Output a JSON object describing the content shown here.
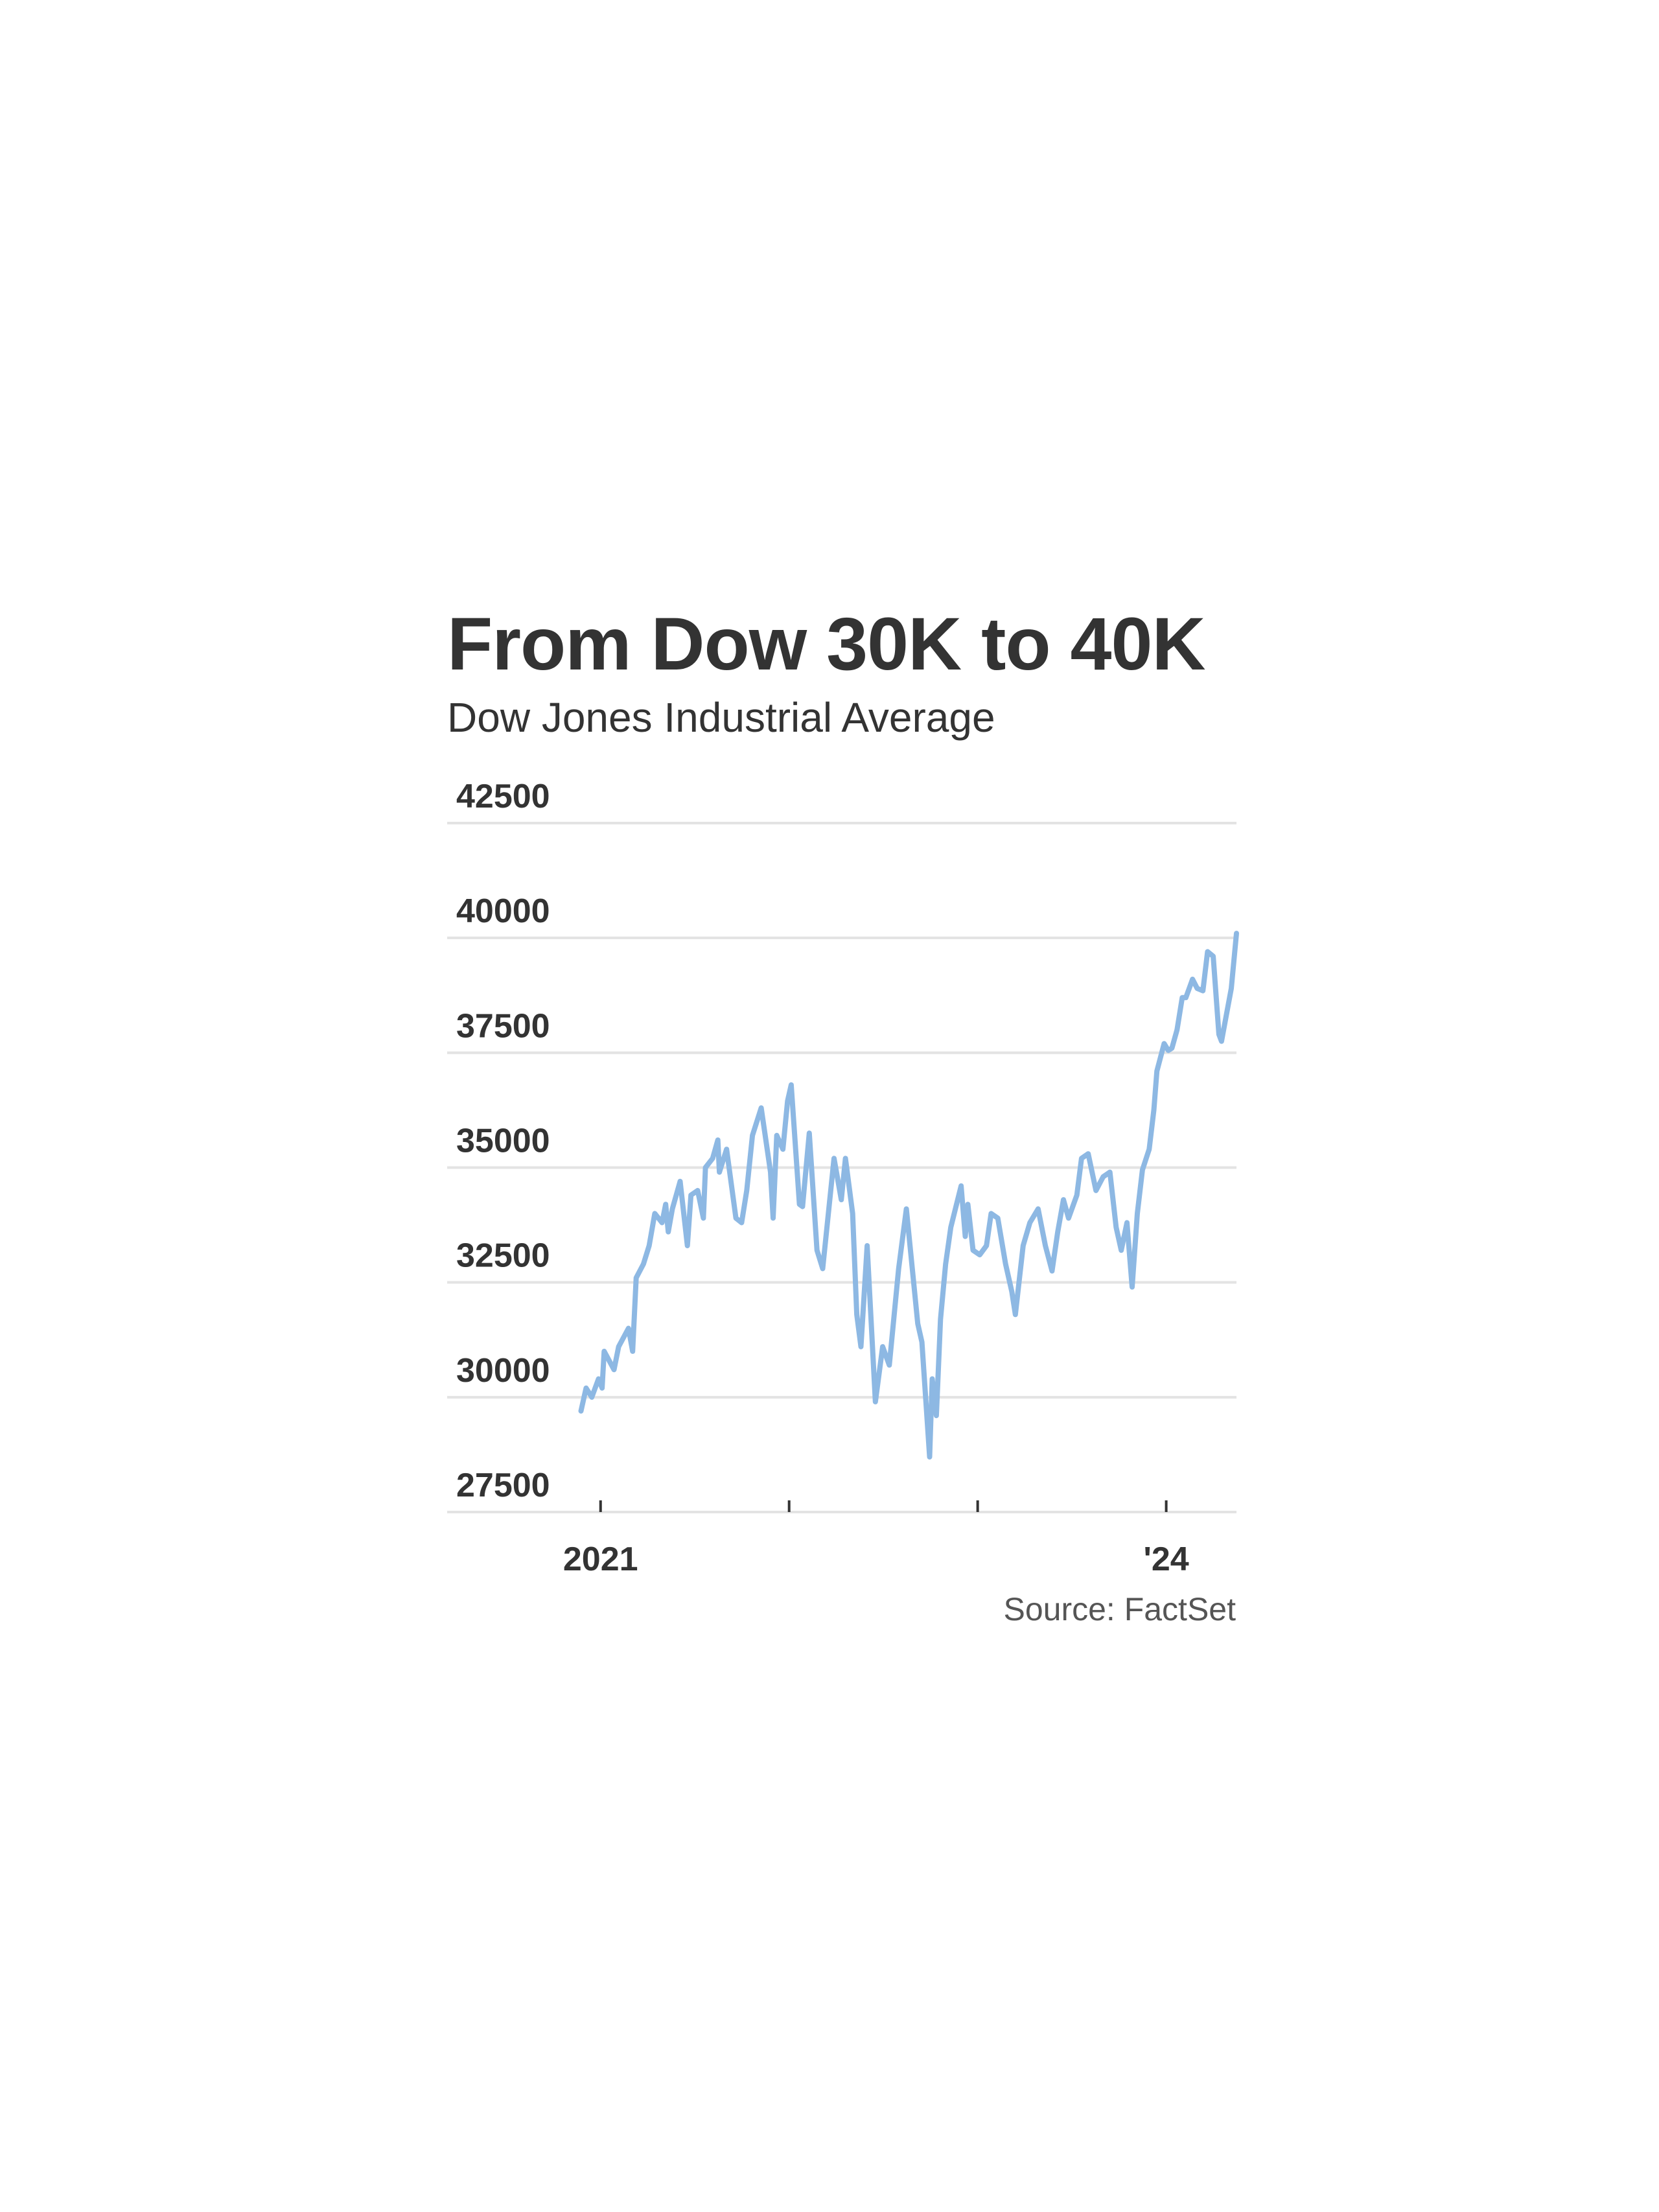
{
  "chart_data": {
    "type": "line",
    "title": "From Dow 30K to 40K",
    "subtitle": "Dow Jones Industrial Average",
    "source": "Source: FactSet",
    "xlabel": "",
    "ylabel": "",
    "ylim": [
      27500,
      42500
    ],
    "xlim": [
      "2020-03-10",
      "2024-05-16"
    ],
    "y_ticks": [
      27500,
      30000,
      32500,
      35000,
      37500,
      40000,
      42500
    ],
    "y_tick_labels": [
      "27500",
      "30000",
      "32500",
      "35000",
      "37500",
      "40000",
      "42500"
    ],
    "x_ticks": [
      "2021-01-01",
      "2022-01-01",
      "2023-01-01",
      "2024-01-01"
    ],
    "x_tick_labels": [
      "2021",
      "",
      "",
      "'24"
    ],
    "grid": "horizontal",
    "legend": "none",
    "line_color": "#8db8e3",
    "grid_color": "#e3e3e3",
    "series": [
      {
        "x": [
          "2020-11-24",
          "2020-12-04",
          "2020-12-15",
          "2020-12-28",
          "2021-01-04",
          "2021-01-08",
          "2021-01-27",
          "2021-02-05",
          "2021-02-24",
          "2021-03-04",
          "2021-03-11",
          "2021-03-25",
          "2021-04-05",
          "2021-04-16",
          "2021-04-30",
          "2021-05-07",
          "2021-05-12",
          "2021-05-20",
          "2021-06-04",
          "2021-06-18",
          "2021-06-25",
          "2021-07-08",
          "2021-07-19",
          "2021-07-23",
          "2021-08-06",
          "2021-08-16",
          "2021-08-19",
          "2021-09-02",
          "2021-09-20",
          "2021-10-01",
          "2021-10-11",
          "2021-10-22",
          "2021-11-08",
          "2021-11-26",
          "2021-12-01",
          "2021-12-08",
          "2021-12-20",
          "2021-12-29",
          "2022-01-05",
          "2022-01-21",
          "2022-01-27",
          "2022-02-09",
          "2022-02-24",
          "2022-03-07",
          "2022-03-29",
          "2022-04-12",
          "2022-04-20",
          "2022-05-04",
          "2022-05-12",
          "2022-05-20",
          "2022-06-01",
          "2022-06-10",
          "2022-06-17",
          "2022-07-01",
          "2022-07-14",
          "2022-08-01",
          "2022-08-16",
          "2022-09-07",
          "2022-09-15",
          "2022-09-30",
          "2022-10-05",
          "2022-10-13",
          "2022-10-21",
          "2022-10-31",
          "2022-11-10",
          "2022-11-30",
          "2022-12-08",
          "2022-12-13",
          "2022-12-23",
          "2023-01-05",
          "2023-01-18",
          "2023-01-27",
          "2023-02-09",
          "2023-02-24",
          "2023-03-08",
          "2023-03-15",
          "2023-03-30",
          "2023-04-12",
          "2023-04-28",
          "2023-05-12",
          "2023-05-25",
          "2023-06-05",
          "2023-06-16",
          "2023-06-26",
          "2023-07-12",
          "2023-07-21",
          "2023-08-03",
          "2023-08-18",
          "2023-09-01",
          "2023-09-14",
          "2023-09-26",
          "2023-10-06",
          "2023-10-17",
          "2023-10-27",
          "2023-11-06",
          "2023-11-16",
          "2023-11-29",
          "2023-12-08",
          "2023-12-14",
          "2023-12-28",
          "2024-01-05",
          "2024-01-12",
          "2024-01-22",
          "2024-02-01",
          "2024-02-08",
          "2024-02-21",
          "2024-03-01",
          "2024-03-12",
          "2024-03-21",
          "2024-04-01",
          "2024-04-12",
          "2024-04-17",
          "2024-04-26",
          "2024-05-06",
          "2024-05-16"
        ],
        "values": [
          29700,
          30200,
          30000,
          30400,
          30200,
          31000,
          30600,
          31100,
          31500,
          31000,
          32600,
          32900,
          33300,
          34000,
          33800,
          34200,
          33600,
          34100,
          34700,
          33300,
          34400,
          34500,
          33900,
          35000,
          35200,
          35600,
          34900,
          35400,
          33900,
          33800,
          34500,
          35700,
          36300,
          34900,
          33900,
          35700,
          35400,
          36450,
          36800,
          34200,
          34150,
          35750,
          33200,
          32800,
          35200,
          34300,
          35200,
          34000,
          31800,
          31100,
          33300,
          31400,
          29900,
          31100,
          30700,
          32800,
          34100,
          31600,
          31200,
          28700,
          30400,
          29600,
          31700,
          32900,
          33700,
          34600,
          33500,
          34200,
          33200,
          33100,
          33300,
          34000,
          33900,
          32900,
          32300,
          31800,
          33300,
          33800,
          34100,
          33300,
          32750,
          33600,
          34300,
          33900,
          34400,
          35200,
          35300,
          34500,
          34800,
          34900,
          33700,
          33200,
          33800,
          32400,
          34000,
          34950,
          35400,
          36250,
          37100,
          37700,
          37550,
          37600,
          38000,
          38700,
          38700,
          39100,
          38900,
          38850,
          39700,
          39600,
          37900,
          37750,
          38300,
          38900,
          40100
        ]
      }
    ]
  }
}
